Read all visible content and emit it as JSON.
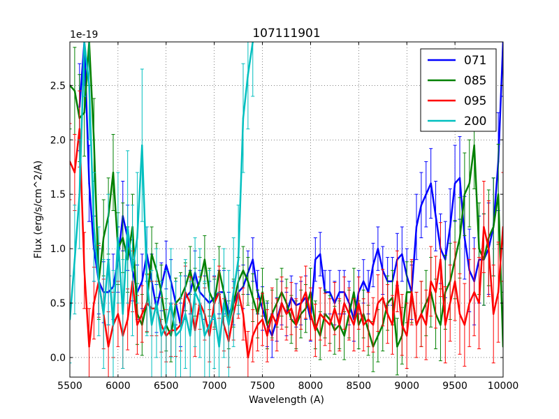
{
  "chart_data": {
    "type": "line",
    "title": "107111901",
    "xlabel": "Wavelength (A)",
    "ylabel": "Flux (erg/s/cm^2/A)",
    "offset_label": "1e-19",
    "xlim": [
      5500,
      10000
    ],
    "ylim": [
      -0.18,
      2.9
    ],
    "xticks": [
      5500,
      6000,
      6500,
      7000,
      7500,
      8000,
      8500,
      9000,
      9500,
      10000
    ],
    "yticks": [
      0.0,
      0.5,
      1.0,
      1.5,
      2.0,
      2.5
    ],
    "ytick_labels": [
      "0.0",
      "0.5",
      "1.0",
      "1.5",
      "2.0",
      "2.5"
    ],
    "grid": true,
    "legend_position": "top-right",
    "series": [
      {
        "name": "071",
        "color": "#0000ff",
        "x": [
          5500,
          5550,
          5600,
          5650,
          5700,
          5750,
          5800,
          5850,
          5900,
          5950,
          6000,
          6050,
          6100,
          6150,
          6200,
          6250,
          6300,
          6350,
          6400,
          6450,
          6500,
          6550,
          6600,
          6650,
          6700,
          6750,
          6800,
          6850,
          6900,
          6950,
          7000,
          7050,
          7100,
          7150,
          7200,
          7250,
          7300,
          7350,
          7400,
          7450,
          7500,
          7550,
          7600,
          7650,
          7700,
          7750,
          7800,
          7850,
          7900,
          7950,
          8000,
          8050,
          8100,
          8150,
          8200,
          8250,
          8300,
          8350,
          8400,
          8450,
          8500,
          8550,
          8600,
          8650,
          8700,
          8750,
          8800,
          8850,
          8900,
          8950,
          9000,
          9050,
          9100,
          9150,
          9200,
          9250,
          9300,
          9350,
          9400,
          9450,
          9500,
          9550,
          9600,
          9650,
          9700,
          9750,
          9800,
          9850,
          9900,
          9950,
          10000
        ],
        "y": [
          null,
          null,
          2.3,
          2.9,
          1.6,
          1.0,
          0.7,
          0.6,
          0.6,
          0.65,
          0.9,
          1.3,
          1.1,
          0.8,
          0.6,
          0.7,
          0.95,
          0.7,
          0.45,
          0.65,
          0.85,
          0.7,
          0.5,
          0.3,
          0.55,
          0.6,
          0.78,
          0.6,
          0.55,
          0.5,
          0.55,
          0.6,
          0.6,
          0.4,
          0.5,
          0.6,
          0.65,
          0.78,
          0.9,
          0.6,
          0.45,
          0.3,
          0.2,
          0.35,
          0.5,
          0.4,
          0.55,
          0.48,
          0.5,
          0.55,
          0.35,
          0.9,
          0.95,
          0.6,
          0.6,
          0.5,
          0.6,
          0.6,
          0.5,
          0.35,
          0.6,
          0.7,
          0.6,
          0.85,
          1.0,
          0.8,
          0.7,
          0.7,
          0.9,
          0.95,
          0.75,
          0.6,
          1.2,
          1.4,
          1.5,
          1.6,
          1.3,
          1.0,
          0.9,
          1.2,
          1.6,
          1.65,
          1.1,
          0.8,
          0.7,
          0.9,
          0.9,
          1.0,
          1.2,
          1.8,
          2.9
        ],
        "err": [
          0,
          0,
          0.4,
          0.4,
          0.35,
          0.3,
          0.3,
          0.28,
          0.3,
          0.3,
          0.3,
          0.32,
          0.3,
          0.28,
          0.25,
          0.25,
          0.25,
          0.25,
          0.22,
          0.22,
          0.22,
          0.2,
          0.2,
          0.2,
          0.2,
          0.2,
          0.2,
          0.2,
          0.2,
          0.2,
          0.2,
          0.2,
          0.2,
          0.2,
          0.2,
          0.2,
          0.2,
          0.2,
          0.2,
          0.2,
          0.2,
          0.2,
          0.2,
          0.2,
          0.2,
          0.2,
          0.2,
          0.2,
          0.2,
          0.2,
          0.2,
          0.2,
          0.2,
          0.2,
          0.2,
          0.2,
          0.2,
          0.2,
          0.2,
          0.2,
          0.2,
          0.2,
          0.2,
          0.2,
          0.2,
          0.22,
          0.22,
          0.22,
          0.24,
          0.25,
          0.25,
          0.25,
          0.3,
          0.3,
          0.3,
          0.32,
          0.32,
          0.32,
          0.35,
          0.35,
          0.35,
          0.38,
          0.38,
          0.38,
          0.4,
          0.4,
          0.42,
          0.42,
          0.45,
          0.45,
          0.5
        ]
      },
      {
        "name": "085",
        "color": "#008000",
        "x": [
          5500,
          5550,
          5600,
          5650,
          5700,
          5750,
          5800,
          5850,
          5900,
          5950,
          6000,
          6050,
          6100,
          6150,
          6200,
          6250,
          6300,
          6350,
          6400,
          6450,
          6500,
          6550,
          6600,
          6650,
          6700,
          6750,
          6800,
          6850,
          6900,
          6950,
          7000,
          7050,
          7100,
          7150,
          7200,
          7250,
          7300,
          7350,
          7400,
          7450,
          7500,
          7550,
          7600,
          7650,
          7700,
          7750,
          7800,
          7850,
          7900,
          7950,
          8000,
          8050,
          8100,
          8150,
          8200,
          8250,
          8300,
          8350,
          8400,
          8450,
          8500,
          8550,
          8600,
          8650,
          8700,
          8750,
          8800,
          8850,
          8900,
          8950,
          9000,
          9050,
          9100,
          9150,
          9200,
          9250,
          9300,
          9350,
          9400,
          9450,
          9500,
          9550,
          9600,
          9650,
          9700,
          9750,
          9800,
          9850,
          9900,
          9950,
          10000
        ],
        "y": [
          2.5,
          2.45,
          2.2,
          2.25,
          2.9,
          2.0,
          0.7,
          1.1,
          1.3,
          1.7,
          1.0,
          1.1,
          0.9,
          1.2,
          0.4,
          0.3,
          0.5,
          0.95,
          0.8,
          0.6,
          0.3,
          0.2,
          0.5,
          0.55,
          0.65,
          0.8,
          0.6,
          0.7,
          0.9,
          0.6,
          0.5,
          0.8,
          0.6,
          0.3,
          0.5,
          0.7,
          0.8,
          0.7,
          0.55,
          0.4,
          0.6,
          0.3,
          0.4,
          0.5,
          0.6,
          0.5,
          0.35,
          0.3,
          0.4,
          0.45,
          0.6,
          0.3,
          0.2,
          0.4,
          0.35,
          0.25,
          0.3,
          0.2,
          0.4,
          0.6,
          0.3,
          0.4,
          0.25,
          0.1,
          0.2,
          0.3,
          0.5,
          0.55,
          0.1,
          0.2,
          0.6,
          0.6,
          0.3,
          0.4,
          0.5,
          0.6,
          0.4,
          0.3,
          0.6,
          0.7,
          0.9,
          1.1,
          1.5,
          1.6,
          1.95,
          1.0,
          0.9,
          1.1,
          1.2,
          1.5,
          0.1
        ],
        "err": [
          0.4,
          0.4,
          0.4,
          0.4,
          0.4,
          0.38,
          0.35,
          0.35,
          0.35,
          0.35,
          0.33,
          0.32,
          0.3,
          0.3,
          0.28,
          0.28,
          0.27,
          0.25,
          0.25,
          0.25,
          0.24,
          0.24,
          0.23,
          0.23,
          0.22,
          0.22,
          0.22,
          0.22,
          0.22,
          0.22,
          0.22,
          0.22,
          0.22,
          0.22,
          0.22,
          0.22,
          0.22,
          0.22,
          0.22,
          0.22,
          0.22,
          0.22,
          0.22,
          0.22,
          0.22,
          0.22,
          0.22,
          0.22,
          0.22,
          0.22,
          0.22,
          0.22,
          0.22,
          0.22,
          0.22,
          0.22,
          0.22,
          0.22,
          0.22,
          0.22,
          0.22,
          0.22,
          0.23,
          0.23,
          0.24,
          0.24,
          0.25,
          0.25,
          0.26,
          0.26,
          0.28,
          0.28,
          0.3,
          0.3,
          0.3,
          0.32,
          0.32,
          0.33,
          0.34,
          0.35,
          0.36,
          0.37,
          0.38,
          0.4,
          0.4,
          0.42,
          0.42,
          0.44,
          0.45,
          0.46,
          0.5
        ]
      },
      {
        "name": "095",
        "color": "#ff0000",
        "x": [
          5500,
          5550,
          5600,
          5650,
          5700,
          5750,
          5800,
          5850,
          5900,
          5950,
          6000,
          6050,
          6100,
          6150,
          6200,
          6250,
          6300,
          6350,
          6400,
          6450,
          6500,
          6550,
          6600,
          6650,
          6700,
          6750,
          6800,
          6850,
          6900,
          6950,
          7000,
          7050,
          7100,
          7150,
          7200,
          7250,
          7300,
          7350,
          7400,
          7450,
          7500,
          7550,
          7600,
          7650,
          7700,
          7750,
          7800,
          7850,
          7900,
          7950,
          8000,
          8050,
          8100,
          8150,
          8200,
          8250,
          8300,
          8350,
          8400,
          8450,
          8500,
          8550,
          8600,
          8650,
          8700,
          8750,
          8800,
          8850,
          8900,
          8950,
          9000,
          9050,
          9100,
          9150,
          9200,
          9250,
          9300,
          9350,
          9400,
          9450,
          9500,
          9550,
          9600,
          9650,
          9700,
          9750,
          9800,
          9850,
          9900,
          9950,
          10000
        ],
        "y": [
          1.8,
          1.7,
          2.1,
          0.8,
          0.1,
          0.5,
          0.7,
          0.4,
          0.1,
          0.3,
          0.4,
          0.2,
          0.35,
          0.7,
          0.3,
          0.4,
          0.5,
          0.45,
          0.45,
          0.3,
          0.2,
          0.25,
          0.25,
          0.3,
          0.6,
          0.5,
          0.25,
          0.5,
          0.4,
          0.2,
          0.5,
          0.6,
          0.3,
          0.15,
          0.4,
          0.6,
          0.4,
          0.0,
          0.2,
          0.3,
          0.35,
          0.2,
          0.4,
          0.3,
          0.5,
          0.4,
          0.45,
          0.3,
          0.5,
          0.6,
          0.4,
          0.25,
          0.4,
          0.35,
          0.3,
          0.45,
          0.3,
          0.5,
          0.4,
          0.3,
          0.5,
          0.3,
          0.35,
          0.3,
          0.5,
          0.55,
          0.4,
          0.3,
          0.7,
          0.3,
          0.2,
          0.6,
          0.3,
          0.4,
          0.3,
          0.7,
          0.6,
          0.9,
          0.3,
          0.5,
          0.7,
          0.4,
          0.3,
          0.5,
          0.6,
          0.5,
          1.2,
          1.0,
          0.4,
          0.6,
          1.2
        ],
        "err": [
          0.35,
          0.35,
          0.35,
          0.35,
          0.35,
          0.33,
          0.33,
          0.32,
          0.32,
          0.3,
          0.3,
          0.3,
          0.28,
          0.28,
          0.27,
          0.26,
          0.26,
          0.25,
          0.25,
          0.25,
          0.24,
          0.24,
          0.24,
          0.24,
          0.24,
          0.24,
          0.24,
          0.24,
          0.24,
          0.24,
          0.24,
          0.24,
          0.24,
          0.24,
          0.24,
          0.24,
          0.24,
          0.24,
          0.24,
          0.24,
          0.24,
          0.24,
          0.24,
          0.24,
          0.24,
          0.24,
          0.24,
          0.24,
          0.24,
          0.24,
          0.24,
          0.24,
          0.24,
          0.24,
          0.24,
          0.24,
          0.24,
          0.24,
          0.24,
          0.24,
          0.24,
          0.24,
          0.25,
          0.25,
          0.26,
          0.26,
          0.27,
          0.27,
          0.28,
          0.28,
          0.3,
          0.3,
          0.3,
          0.3,
          0.32,
          0.32,
          0.33,
          0.34,
          0.35,
          0.35,
          0.36,
          0.37,
          0.38,
          0.4,
          0.4,
          0.42,
          0.42,
          0.44,
          0.45,
          0.46,
          0.5
        ]
      },
      {
        "name": "200",
        "color": "#00bfbf",
        "x": [
          5500,
          5550,
          5600,
          5650,
          5700,
          5750,
          5800,
          5850,
          5900,
          5950,
          6000,
          6050,
          6100,
          6150,
          6200,
          6250,
          6300,
          6350,
          6400,
          6450,
          6500,
          6550,
          6600,
          6650,
          6700,
          6750,
          6800,
          6850,
          6900,
          6950,
          7000,
          7050,
          7100,
          7150,
          7200,
          7250,
          7300,
          7350,
          7400,
          7450,
          7500
        ],
        "y": [
          0.35,
          0.9,
          1.5,
          2.9,
          2.5,
          1.2,
          0.7,
          0.4,
          0.9,
          0.3,
          1.1,
          0.4,
          1.2,
          0.8,
          1.1,
          1.95,
          0.7,
          0.3,
          0.5,
          0.2,
          0.3,
          0.5,
          0.2,
          0.25,
          0.4,
          0.2,
          0.6,
          0.5,
          0.2,
          0.3,
          0.4,
          0.1,
          0.5,
          0.3,
          0.6,
          0.9,
          2.2,
          2.6,
          2.9,
          null,
          null
        ],
        "err": [
          0.4,
          0.5,
          0.5,
          0.5,
          0.5,
          0.5,
          0.5,
          0.5,
          0.6,
          0.5,
          0.6,
          0.5,
          0.7,
          0.6,
          0.6,
          0.7,
          0.5,
          0.5,
          0.5,
          0.5,
          0.5,
          0.5,
          0.5,
          0.5,
          0.5,
          0.5,
          0.5,
          0.5,
          0.5,
          0.5,
          0.5,
          0.5,
          0.5,
          0.5,
          0.5,
          0.5,
          0.5,
          0.5,
          0.5,
          0,
          0
        ]
      }
    ]
  }
}
